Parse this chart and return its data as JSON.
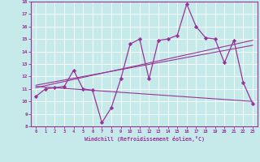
{
  "xlabel": "Windchill (Refroidissement éolien,°C)",
  "bg_color": "#c6eaea",
  "line_color": "#993399",
  "xlim": [
    -0.5,
    23.5
  ],
  "ylim": [
    8,
    18
  ],
  "yticks": [
    8,
    9,
    10,
    11,
    12,
    13,
    14,
    15,
    16,
    17,
    18
  ],
  "xticks": [
    0,
    1,
    2,
    3,
    4,
    5,
    6,
    7,
    8,
    9,
    10,
    11,
    12,
    13,
    14,
    15,
    16,
    17,
    18,
    19,
    20,
    21,
    22,
    23
  ],
  "main_line_x": [
    0,
    1,
    2,
    3,
    4,
    5,
    6,
    7,
    8,
    9,
    10,
    11,
    12,
    13,
    14,
    15,
    16,
    17,
    18,
    19,
    20,
    21,
    22,
    23
  ],
  "main_line_y": [
    10.4,
    11.0,
    11.1,
    11.2,
    12.5,
    11.0,
    10.9,
    8.3,
    9.5,
    11.8,
    14.6,
    15.0,
    11.8,
    14.9,
    15.0,
    15.3,
    17.8,
    16.0,
    15.1,
    15.0,
    13.1,
    14.9,
    11.5,
    9.8
  ],
  "trend1_x": [
    0,
    23
  ],
  "trend1_y": [
    11.1,
    14.9
  ],
  "trend2_x": [
    0,
    23
  ],
  "trend2_y": [
    11.3,
    14.5
  ],
  "trend3_x": [
    0,
    23
  ],
  "trend3_y": [
    11.2,
    10.0
  ]
}
